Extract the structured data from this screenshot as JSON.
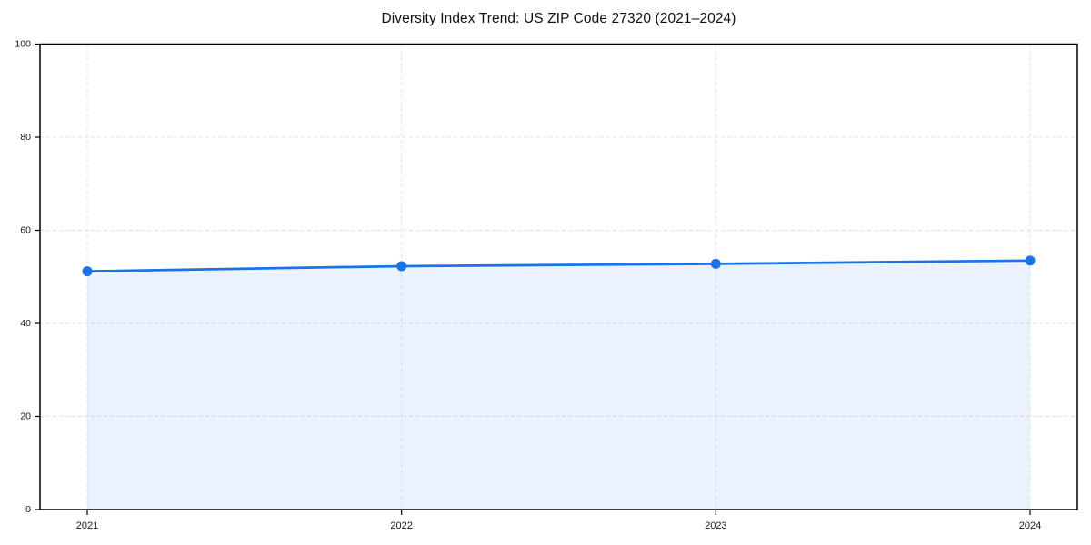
{
  "page": {
    "background_color": "#ffffff"
  },
  "chart_data": {
    "type": "line",
    "title": "Diversity Index Trend: US ZIP Code 27320 (2021–2024)",
    "x": [
      "2021",
      "2022",
      "2023",
      "2024"
    ],
    "series": [
      {
        "name": "Diversity Index",
        "values": [
          51.2,
          52.3,
          52.8,
          53.5
        ]
      }
    ],
    "xlabel": "",
    "ylabel": "",
    "ylim": [
      0,
      100
    ],
    "yticks": [
      0,
      20,
      40,
      60,
      80,
      100
    ],
    "grid": true,
    "grid_style": "dashed",
    "grid_color": "#e0e0e0",
    "legend": false,
    "legend_position": "none",
    "line_color": "#1a73e8",
    "marker": "circle",
    "marker_color": "#1a73e8",
    "area_fill": true,
    "fill_color": "#1a73e8",
    "fill_opacity": 0.09,
    "frame_color": "#000000",
    "tick_label_color": "#1a1a1a"
  }
}
